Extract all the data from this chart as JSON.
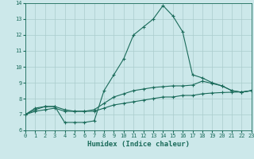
{
  "xlabel": "Humidex (Indice chaleur)",
  "xlim": [
    0,
    23
  ],
  "ylim": [
    6,
    14
  ],
  "yticks": [
    6,
    7,
    8,
    9,
    10,
    11,
    12,
    13,
    14
  ],
  "xticks": [
    0,
    1,
    2,
    3,
    4,
    5,
    6,
    7,
    8,
    9,
    10,
    11,
    12,
    13,
    14,
    15,
    16,
    17,
    18,
    19,
    20,
    21,
    22,
    23
  ],
  "background_color": "#cce8ea",
  "grid_color": "#aacccc",
  "line_color": "#1a6b5a",
  "line1_y": [
    7.0,
    7.4,
    7.5,
    7.5,
    6.5,
    6.5,
    6.5,
    6.6,
    8.5,
    9.5,
    10.5,
    12.0,
    12.5,
    13.0,
    13.85,
    13.2,
    12.2,
    9.5,
    9.3,
    9.0,
    8.8,
    8.5,
    8.4,
    8.5
  ],
  "line2_y": [
    7.0,
    7.3,
    7.5,
    7.5,
    7.3,
    7.2,
    7.2,
    7.3,
    7.7,
    8.1,
    8.3,
    8.5,
    8.6,
    8.7,
    8.75,
    8.8,
    8.8,
    8.85,
    9.1,
    8.95,
    8.8,
    8.5,
    8.4,
    8.5
  ],
  "line3_y": [
    7.0,
    7.2,
    7.3,
    7.4,
    7.2,
    7.2,
    7.2,
    7.2,
    7.4,
    7.6,
    7.7,
    7.8,
    7.9,
    8.0,
    8.1,
    8.1,
    8.2,
    8.2,
    8.3,
    8.35,
    8.38,
    8.4,
    8.42,
    8.5
  ]
}
